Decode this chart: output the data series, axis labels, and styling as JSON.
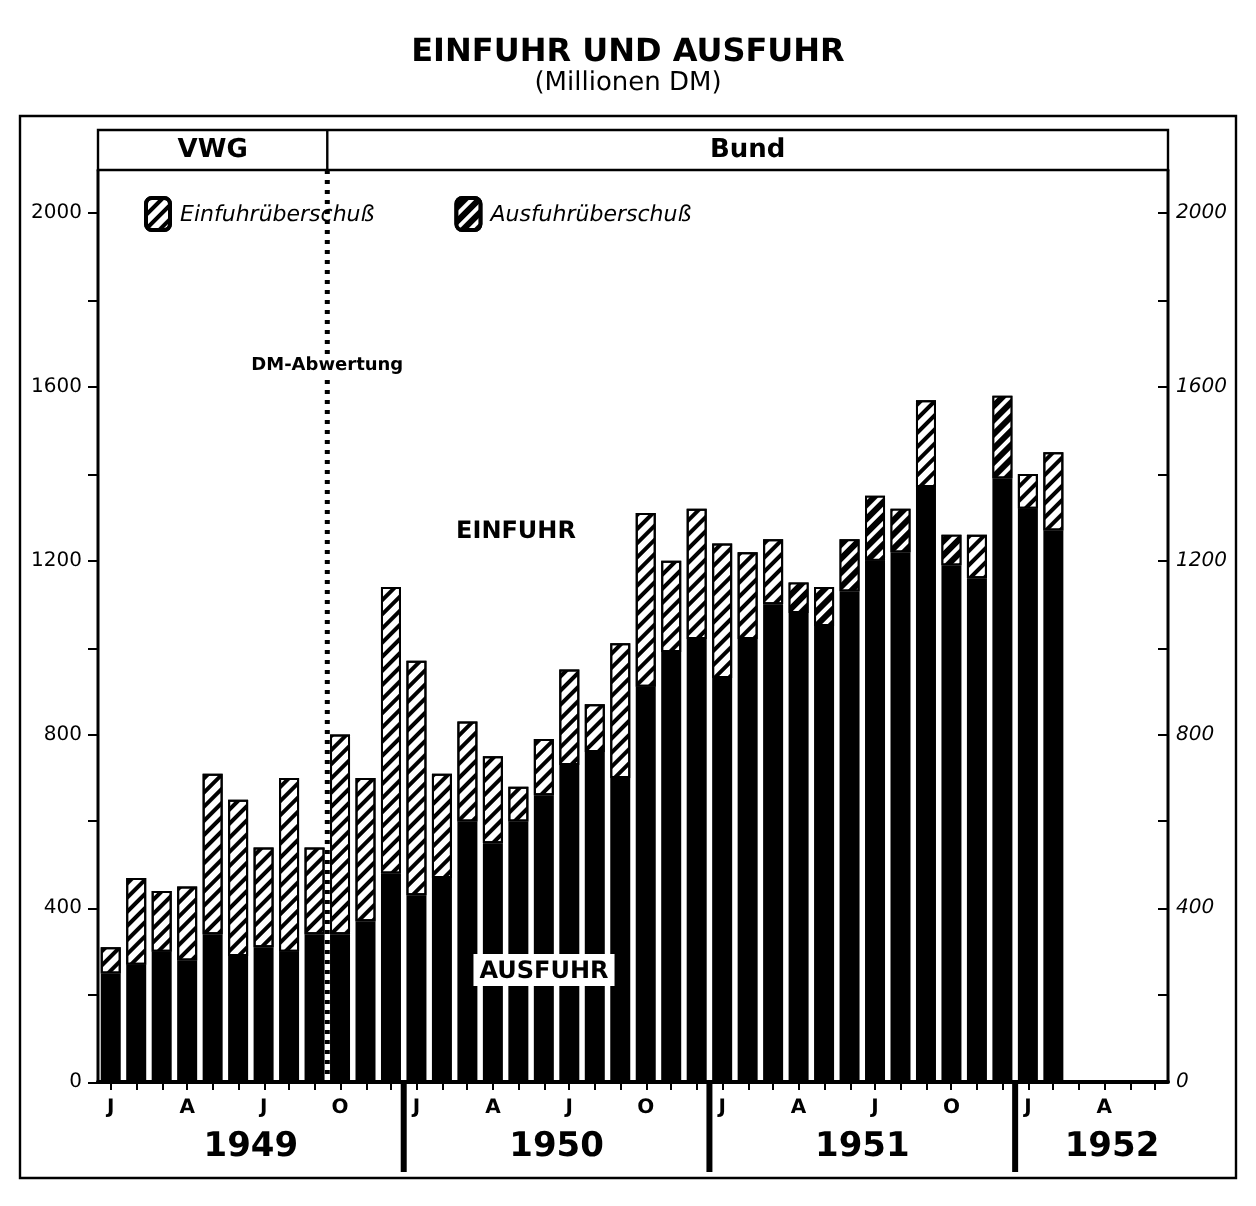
{
  "chart_data": {
    "type": "bar",
    "title": "EINFUHR UND AUSFUHR",
    "subtitle": "(Millionen DM)",
    "annotations": [
      "VWG",
      "Bund",
      "EINFUHR",
      "AUSFUHR",
      "1949",
      "1950",
      "1951",
      "1952",
      "DM-Abwertung"
    ],
    "categories": [
      "J",
      null,
      null,
      "A",
      null,
      null,
      "J",
      null,
      null,
      "O",
      null,
      null,
      "J",
      null,
      null,
      "A",
      null,
      null,
      "J",
      null,
      null,
      "O",
      null,
      null,
      "J",
      null,
      null,
      "A",
      null,
      null,
      "J",
      null,
      null,
      "O",
      null,
      null,
      "J",
      null,
      null,
      "A",
      null,
      null
    ],
    "stacked": true,
    "series": [
      {
        "color": "#000000",
        "values": [
          250,
          270,
          300,
          280,
          340,
          290,
          310,
          300,
          340,
          340,
          370,
          480,
          430,
          470,
          600,
          550,
          600,
          660,
          730,
          760,
          700,
          910,
          990,
          1020,
          930,
          1020,
          1100,
          1080,
          1050,
          1130,
          1200,
          1220,
          1370,
          1190,
          1160,
          1390,
          1320,
          1270,
          null,
          null,
          null,
          null
        ]
      },
      {
        "name": "Einfuhrüberschuß",
        "color": "#ffffff",
        "values": [
          60,
          200,
          140,
          170,
          370,
          360,
          230,
          400,
          200,
          460,
          330,
          660,
          540,
          240,
          230,
          200,
          80,
          130,
          220,
          110,
          310,
          400,
          210,
          300,
          310,
          200,
          150,
          null,
          null,
          null,
          null,
          null,
          200,
          null,
          100,
          null,
          80,
          180,
          null,
          null,
          null,
          null
        ]
      },
      {
        "name": "Ausfuhrüberschuß",
        "color": "#000000",
        "values": [
          null,
          null,
          null,
          null,
          null,
          null,
          null,
          null,
          null,
          null,
          null,
          null,
          null,
          null,
          null,
          null,
          null,
          null,
          null,
          null,
          null,
          null,
          null,
          null,
          null,
          null,
          null,
          70,
          90,
          120,
          150,
          100,
          null,
          70,
          null,
          190,
          null,
          null,
          null,
          null,
          null,
          null
        ]
      }
    ],
    "ylim": [
      0,
      2100
    ],
    "yticks": [
      0,
      {
        "value": 200,
        "label": null
      },
      400,
      {
        "value": 600,
        "label": null
      },
      800,
      {
        "value": 1000,
        "label": null
      },
      1200,
      {
        "value": 1400,
        "label": null
      },
      1600,
      {
        "value": 1800,
        "label": null
      },
      2000
    ],
    "y2lim": [
      0,
      2100
    ],
    "y2ticks": [
      0,
      {
        "value": 200,
        "label": null
      },
      400,
      {
        "value": 600,
        "label": null
      },
      800,
      {
        "value": 1000,
        "label": null
      },
      1200,
      {
        "value": 1400,
        "label": null
      },
      1600,
      {
        "value": 1800,
        "label": null
      },
      2000
    ],
    "legend": "top left",
    "grid": false
  }
}
